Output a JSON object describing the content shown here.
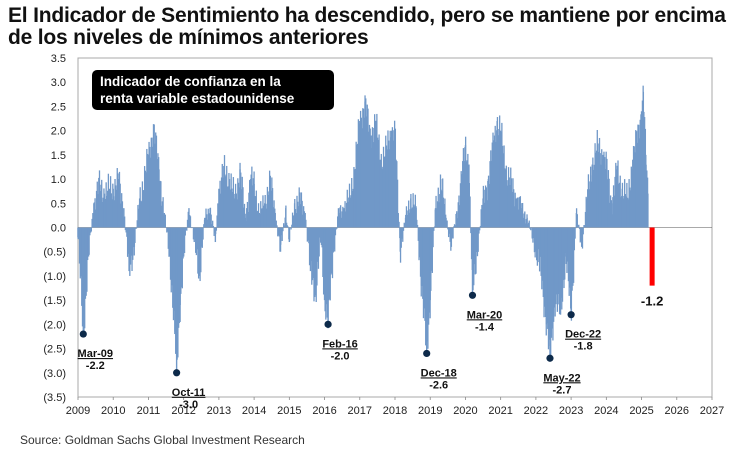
{
  "title": "El Indicador de Sentimiento ha descendido, pero se mantiene por encima de los niveles de mínimos anteriores",
  "source": "Source: Goldman Sachs Global Investment Research",
  "colors": {
    "bars": "#7098c8",
    "latest_bar": "#ff0000",
    "label_box": "#000000",
    "label_text": "#ffffff",
    "marker": "#0d2a4a"
  },
  "chart_data": {
    "type": "bar",
    "label_box": "Indicador de confianza en la renta variable estadounidense",
    "xlim": [
      2009,
      2027
    ],
    "ylim": [
      -3.5,
      3.5
    ],
    "x_ticks": [
      2009,
      2010,
      2011,
      2012,
      2013,
      2014,
      2015,
      2016,
      2017,
      2018,
      2019,
      2020,
      2021,
      2022,
      2023,
      2024,
      2025,
      2026,
      2027
    ],
    "y_ticks": [
      {
        "value": 3.5,
        "label": "3.5"
      },
      {
        "value": 3.0,
        "label": "3.0"
      },
      {
        "value": 2.5,
        "label": "2.5"
      },
      {
        "value": 2.0,
        "label": "2.0"
      },
      {
        "value": 1.5,
        "label": "1.5"
      },
      {
        "value": 1.0,
        "label": "1.0"
      },
      {
        "value": 0.5,
        "label": "0.5"
      },
      {
        "value": 0.0,
        "label": "0.0"
      },
      {
        "value": -0.5,
        "label": "(0.5)"
      },
      {
        "value": -1.0,
        "label": "(1.0)"
      },
      {
        "value": -1.5,
        "label": "(1.5)"
      },
      {
        "value": -2.0,
        "label": "(2.0)"
      },
      {
        "value": -2.5,
        "label": "(2.5)"
      },
      {
        "value": -3.0,
        "label": "(3.0)"
      },
      {
        "value": -3.5,
        "label": "(3.5)"
      }
    ],
    "series": [
      {
        "values": [
          [
            2009.0,
            -0.2
          ],
          [
            2009.15,
            -2.2
          ],
          [
            2009.3,
            -0.6
          ],
          [
            2009.45,
            0.5
          ],
          [
            2009.6,
            0.9
          ],
          [
            2009.75,
            0.7
          ],
          [
            2009.9,
            0.8
          ],
          [
            2010.0,
            0.8
          ],
          [
            2010.15,
            1.0
          ],
          [
            2010.3,
            0.4
          ],
          [
            2010.45,
            -0.9
          ],
          [
            2010.6,
            -0.4
          ],
          [
            2010.75,
            0.6
          ],
          [
            2010.9,
            1.1
          ],
          [
            2011.0,
            1.5
          ],
          [
            2011.15,
            2.1
          ],
          [
            2011.3,
            1.2
          ],
          [
            2011.45,
            0.3
          ],
          [
            2011.6,
            -0.6
          ],
          [
            2011.75,
            -2.2
          ],
          [
            2011.8,
            -3.0
          ],
          [
            2011.9,
            -1.6
          ],
          [
            2012.0,
            -0.6
          ],
          [
            2012.15,
            0.4
          ],
          [
            2012.3,
            -0.3
          ],
          [
            2012.45,
            -1.0
          ],
          [
            2012.6,
            0.2
          ],
          [
            2012.75,
            0.4
          ],
          [
            2012.9,
            -0.3
          ],
          [
            2013.0,
            0.8
          ],
          [
            2013.15,
            1.2
          ],
          [
            2013.3,
            1.0
          ],
          [
            2013.45,
            0.6
          ],
          [
            2013.6,
            1.2
          ],
          [
            2013.75,
            0.2
          ],
          [
            2013.9,
            1.0
          ],
          [
            2014.0,
            0.9
          ],
          [
            2014.15,
            0.3
          ],
          [
            2014.3,
            0.5
          ],
          [
            2014.45,
            1.0
          ],
          [
            2014.6,
            0.3
          ],
          [
            2014.75,
            -0.5
          ],
          [
            2014.9,
            0.4
          ],
          [
            2015.0,
            -0.3
          ],
          [
            2015.15,
            0.5
          ],
          [
            2015.3,
            0.6
          ],
          [
            2015.45,
            0.3
          ],
          [
            2015.6,
            -0.9
          ],
          [
            2015.75,
            -1.4
          ],
          [
            2015.9,
            -0.2
          ],
          [
            2016.0,
            -1.5
          ],
          [
            2016.1,
            -2.0
          ],
          [
            2016.25,
            -0.5
          ],
          [
            2016.4,
            0.3
          ],
          [
            2016.55,
            0.4
          ],
          [
            2016.7,
            0.6
          ],
          [
            2016.85,
            1.2
          ],
          [
            2017.0,
            2.2
          ],
          [
            2017.15,
            2.6
          ],
          [
            2017.3,
            1.9
          ],
          [
            2017.45,
            2.2
          ],
          [
            2017.6,
            1.4
          ],
          [
            2017.75,
            1.6
          ],
          [
            2017.9,
            2.0
          ],
          [
            2018.0,
            2.0
          ],
          [
            2018.15,
            -0.5
          ],
          [
            2018.3,
            0.2
          ],
          [
            2018.45,
            0.6
          ],
          [
            2018.6,
            0.4
          ],
          [
            2018.75,
            -1.2
          ],
          [
            2018.9,
            -2.6
          ],
          [
            2019.0,
            -1.5
          ],
          [
            2019.15,
            0.4
          ],
          [
            2019.3,
            1.0
          ],
          [
            2019.45,
            0.2
          ],
          [
            2019.6,
            -0.4
          ],
          [
            2019.75,
            0.3
          ],
          [
            2019.9,
            1.1
          ],
          [
            2020.0,
            1.7
          ],
          [
            2020.1,
            1.3
          ],
          [
            2020.2,
            -1.4
          ],
          [
            2020.35,
            -0.4
          ],
          [
            2020.5,
            0.6
          ],
          [
            2020.65,
            1.0
          ],
          [
            2020.8,
            1.8
          ],
          [
            2020.9,
            2.2
          ],
          [
            2021.0,
            2.0
          ],
          [
            2021.15,
            1.2
          ],
          [
            2021.3,
            0.9
          ],
          [
            2021.45,
            0.6
          ],
          [
            2021.6,
            0.4
          ],
          [
            2021.75,
            0.2
          ],
          [
            2021.9,
            -0.2
          ],
          [
            2022.0,
            -0.5
          ],
          [
            2022.15,
            -1.0
          ],
          [
            2022.3,
            -2.0
          ],
          [
            2022.4,
            -2.7
          ],
          [
            2022.55,
            -1.5
          ],
          [
            2022.7,
            -1.8
          ],
          [
            2022.85,
            -0.6
          ],
          [
            2023.0,
            -1.8
          ],
          [
            2023.15,
            0.3
          ],
          [
            2023.3,
            -0.4
          ],
          [
            2023.45,
            0.6
          ],
          [
            2023.6,
            1.3
          ],
          [
            2023.75,
            1.7
          ],
          [
            2023.9,
            1.5
          ],
          [
            2024.0,
            1.3
          ],
          [
            2024.15,
            0.5
          ],
          [
            2024.3,
            1.2
          ],
          [
            2024.45,
            0.8
          ],
          [
            2024.6,
            0.6
          ],
          [
            2024.75,
            1.4
          ],
          [
            2024.9,
            2.0
          ],
          [
            2025.0,
            2.4
          ],
          [
            2025.05,
            2.8
          ],
          [
            2025.12,
            1.5
          ],
          [
            2025.18,
            0.7
          ]
        ]
      }
    ],
    "latest": {
      "x": 2025.3,
      "value": -1.2,
      "label": "-1.2"
    },
    "annotations": [
      {
        "date": "Mar-09",
        "value_label": "-2.2",
        "x": 2009.15,
        "y": -2.2
      },
      {
        "date": "Oct-11",
        "value_label": "-3.0",
        "x": 2011.8,
        "y": -3.0
      },
      {
        "date": "Feb-16",
        "value_label": "-2.0",
        "x": 2016.1,
        "y": -2.0
      },
      {
        "date": "Dec-18",
        "value_label": "-2.6",
        "x": 2018.9,
        "y": -2.6
      },
      {
        "date": "Mar-20",
        "value_label": "-1.4",
        "x": 2020.2,
        "y": -1.4
      },
      {
        "date": "May-22",
        "value_label": "-2.7",
        "x": 2022.4,
        "y": -2.7
      },
      {
        "date": "Dec-22",
        "value_label": "-1.8",
        "x": 2023.0,
        "y": -1.8
      }
    ]
  }
}
